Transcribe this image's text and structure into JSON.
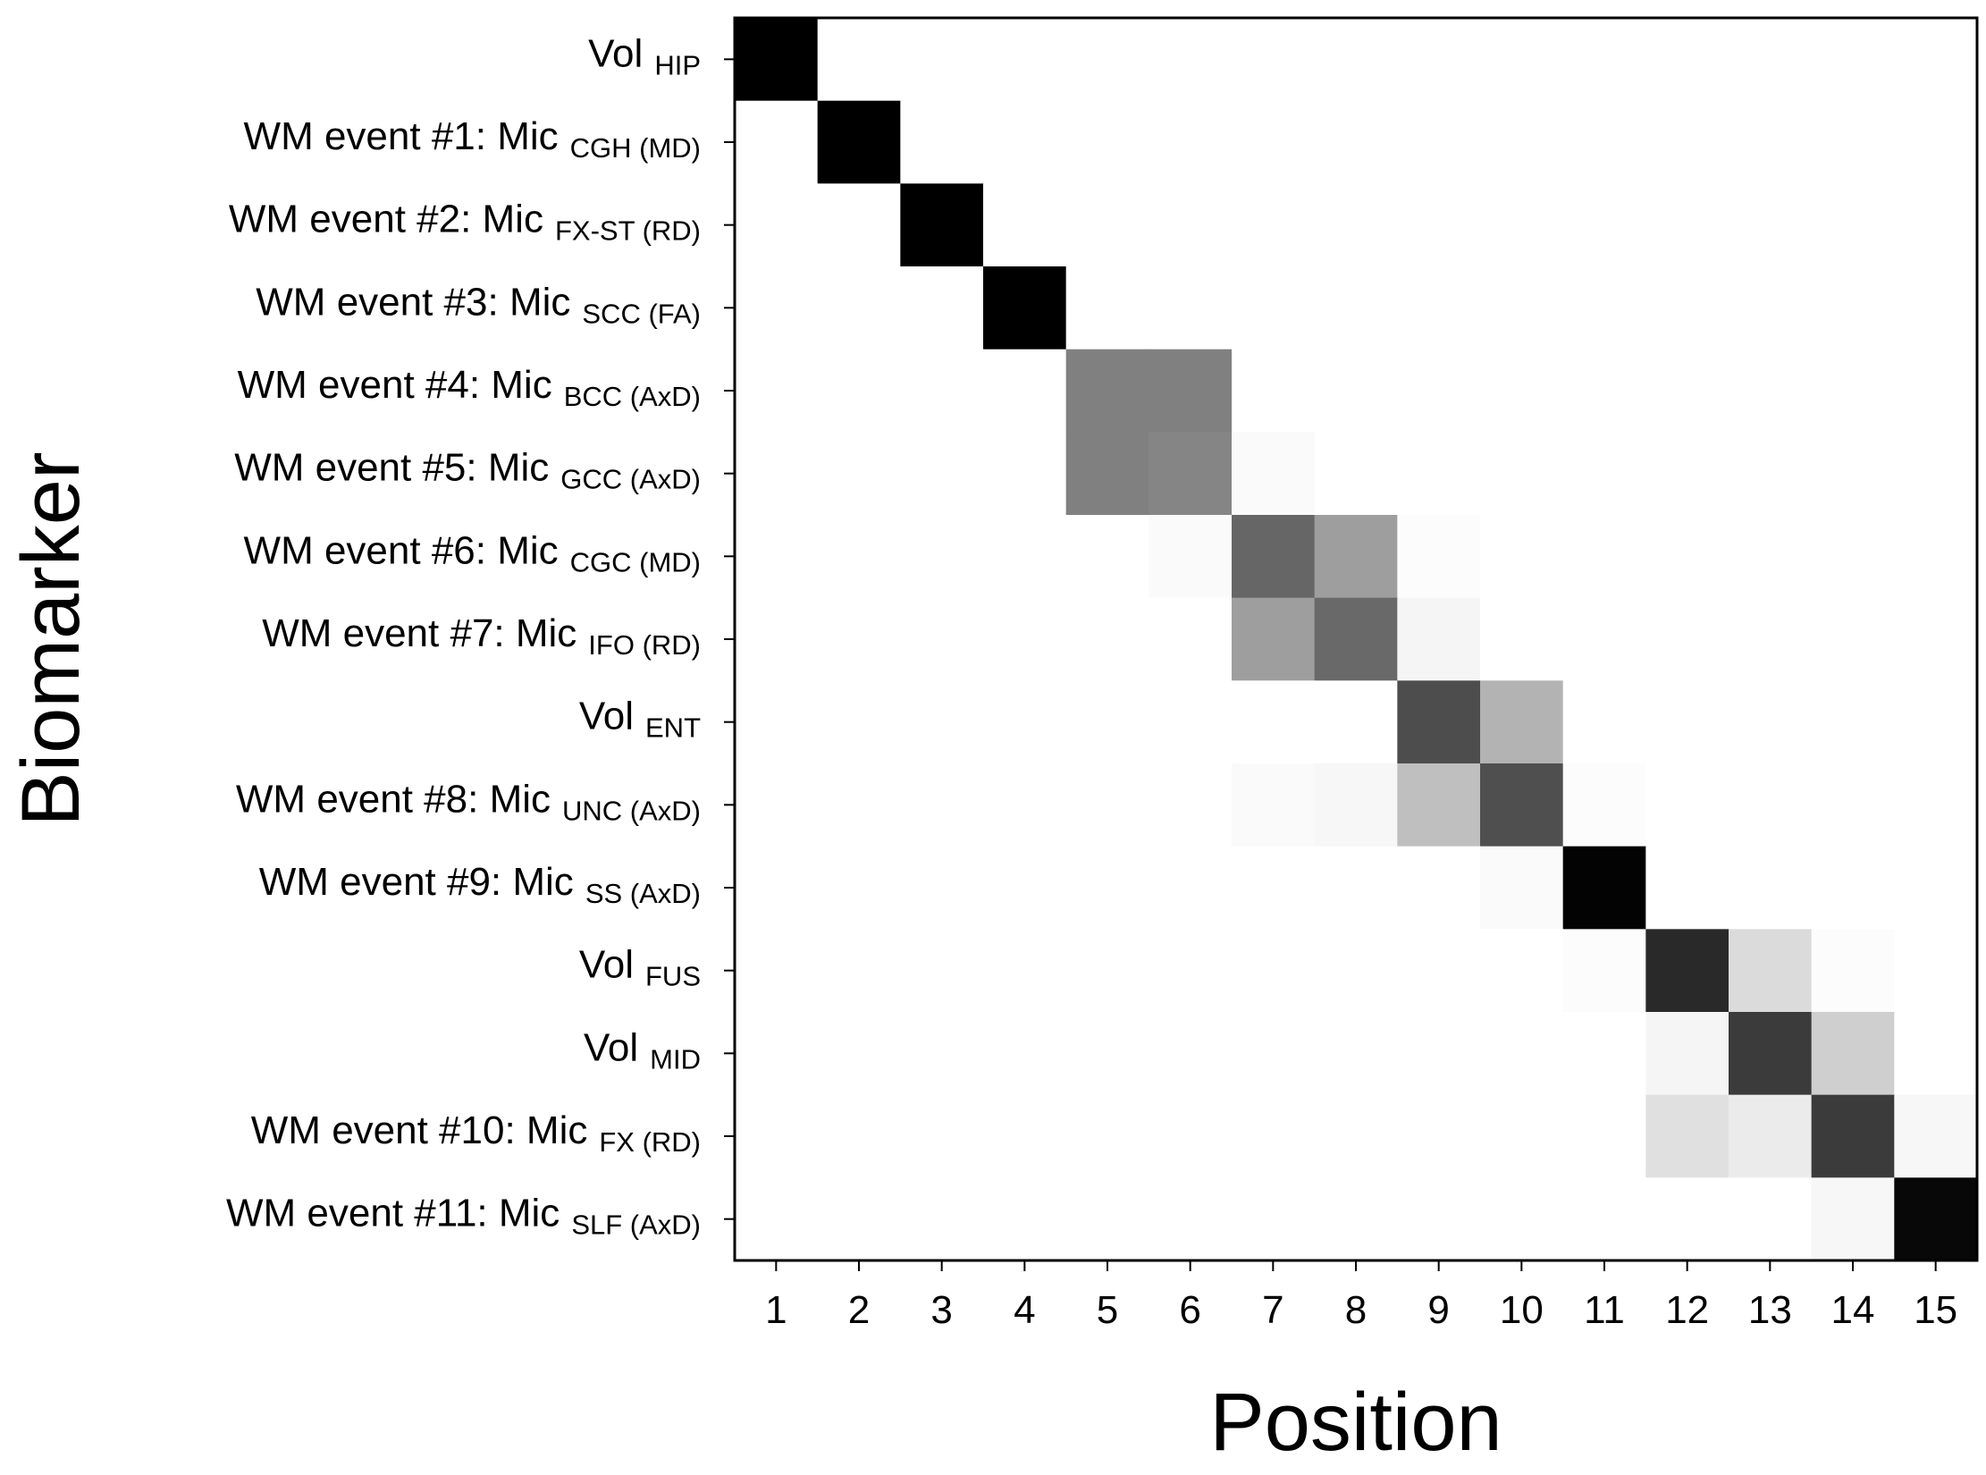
{
  "chart_data": {
    "type": "heatmap",
    "title": "",
    "xlabel": "Position",
    "ylabel": "Biomarker",
    "colormap": "greys",
    "x_categories": [
      "1",
      "2",
      "3",
      "4",
      "5",
      "6",
      "7",
      "8",
      "9",
      "10",
      "11",
      "12",
      "13",
      "14",
      "15"
    ],
    "y_categories": [
      {
        "main": "Vol",
        "sub": "HIP"
      },
      {
        "main": "WM event #1: Mic",
        "sub": "CGH (MD)"
      },
      {
        "main": "WM event #2: Mic",
        "sub": "FX-ST (RD)"
      },
      {
        "main": "WM event #3: Mic",
        "sub": "SCC (FA)"
      },
      {
        "main": "WM event #4: Mic",
        "sub": "BCC (AxD)"
      },
      {
        "main": "WM event #5: Mic",
        "sub": "GCC (AxD)"
      },
      {
        "main": "WM event #6: Mic",
        "sub": "CGC (MD)"
      },
      {
        "main": "WM event #7: Mic",
        "sub": "IFO (RD)"
      },
      {
        "main": "Vol",
        "sub": "ENT"
      },
      {
        "main": "WM event #8: Mic",
        "sub": "UNC (AxD)"
      },
      {
        "main": "WM event #9: Mic",
        "sub": "SS (AxD)"
      },
      {
        "main": "Vol",
        "sub": "FUS"
      },
      {
        "main": "Vol",
        "sub": "MID"
      },
      {
        "main": "WM event #10: Mic",
        "sub": "FX (RD)"
      },
      {
        "main": "WM event #11: Mic",
        "sub": "SLF (AxD)"
      }
    ],
    "values": [
      [
        1.0,
        0,
        0,
        0,
        0,
        0,
        0,
        0,
        0,
        0,
        0,
        0,
        0,
        0,
        0
      ],
      [
        0,
        1.0,
        0,
        0,
        0,
        0,
        0,
        0,
        0,
        0,
        0,
        0,
        0,
        0,
        0
      ],
      [
        0,
        0,
        1.0,
        0,
        0,
        0,
        0,
        0,
        0,
        0,
        0,
        0,
        0,
        0,
        0
      ],
      [
        0,
        0,
        0,
        1.0,
        0,
        0,
        0,
        0,
        0,
        0,
        0,
        0,
        0,
        0,
        0
      ],
      [
        0,
        0,
        0,
        0,
        0.5,
        0.5,
        0,
        0,
        0,
        0,
        0,
        0,
        0,
        0,
        0
      ],
      [
        0,
        0,
        0,
        0,
        0.5,
        0.48,
        0.02,
        0,
        0,
        0,
        0,
        0,
        0,
        0,
        0
      ],
      [
        0,
        0,
        0,
        0,
        0,
        0.02,
        0.6,
        0.38,
        0.01,
        0,
        0,
        0,
        0,
        0,
        0
      ],
      [
        0,
        0,
        0,
        0,
        0,
        0,
        0.38,
        0.59,
        0.04,
        0,
        0,
        0,
        0,
        0,
        0
      ],
      [
        0,
        0,
        0,
        0,
        0,
        0,
        0,
        0,
        0.7,
        0.3,
        0,
        0,
        0,
        0,
        0
      ],
      [
        0,
        0,
        0,
        0,
        0,
        0,
        0.02,
        0.03,
        0.25,
        0.69,
        0.01,
        0,
        0,
        0,
        0
      ],
      [
        0,
        0,
        0,
        0,
        0,
        0,
        0,
        0,
        0,
        0.02,
        0.99,
        0,
        0,
        0,
        0
      ],
      [
        0,
        0,
        0,
        0,
        0,
        0,
        0,
        0,
        0,
        0,
        0.01,
        0.84,
        0.14,
        0.01,
        0
      ],
      [
        0,
        0,
        0,
        0,
        0,
        0,
        0,
        0,
        0,
        0,
        0,
        0.04,
        0.77,
        0.19,
        0
      ],
      [
        0,
        0,
        0,
        0,
        0,
        0,
        0,
        0,
        0,
        0,
        0,
        0.12,
        0.08,
        0.77,
        0.03
      ],
      [
        0,
        0,
        0,
        0,
        0,
        0,
        0,
        0,
        0,
        0,
        0,
        0,
        0,
        0.03,
        0.97
      ]
    ],
    "vmin": 0,
    "vmax": 1,
    "grid": false,
    "legend": "none"
  }
}
